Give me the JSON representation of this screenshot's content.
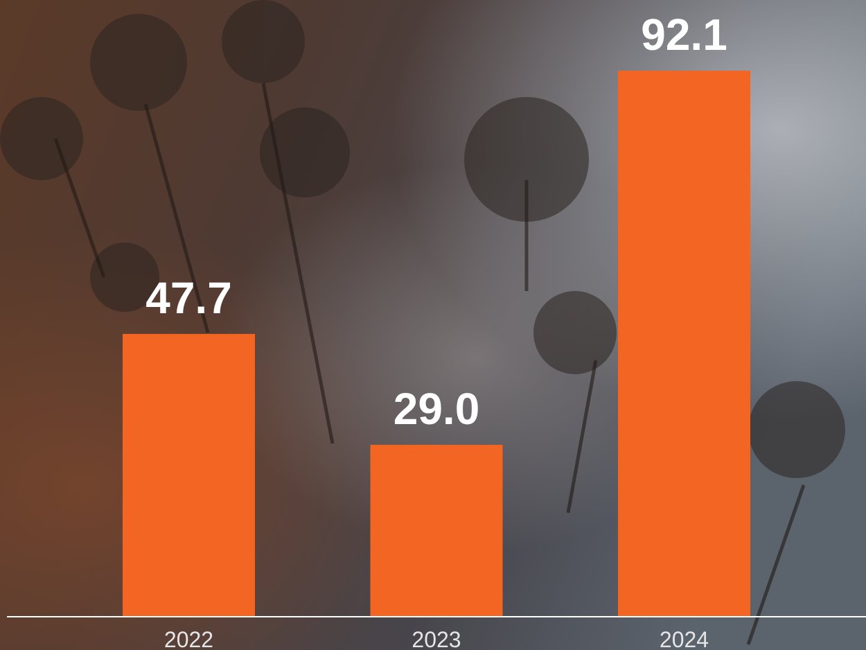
{
  "chart_data": {
    "type": "bar",
    "categories": [
      "2022",
      "2023",
      "2024"
    ],
    "values": [
      47.7,
      29.0,
      92.1
    ],
    "value_labels": [
      "47.7",
      "29.0",
      "92.1"
    ],
    "color": "#f26522"
  }
}
